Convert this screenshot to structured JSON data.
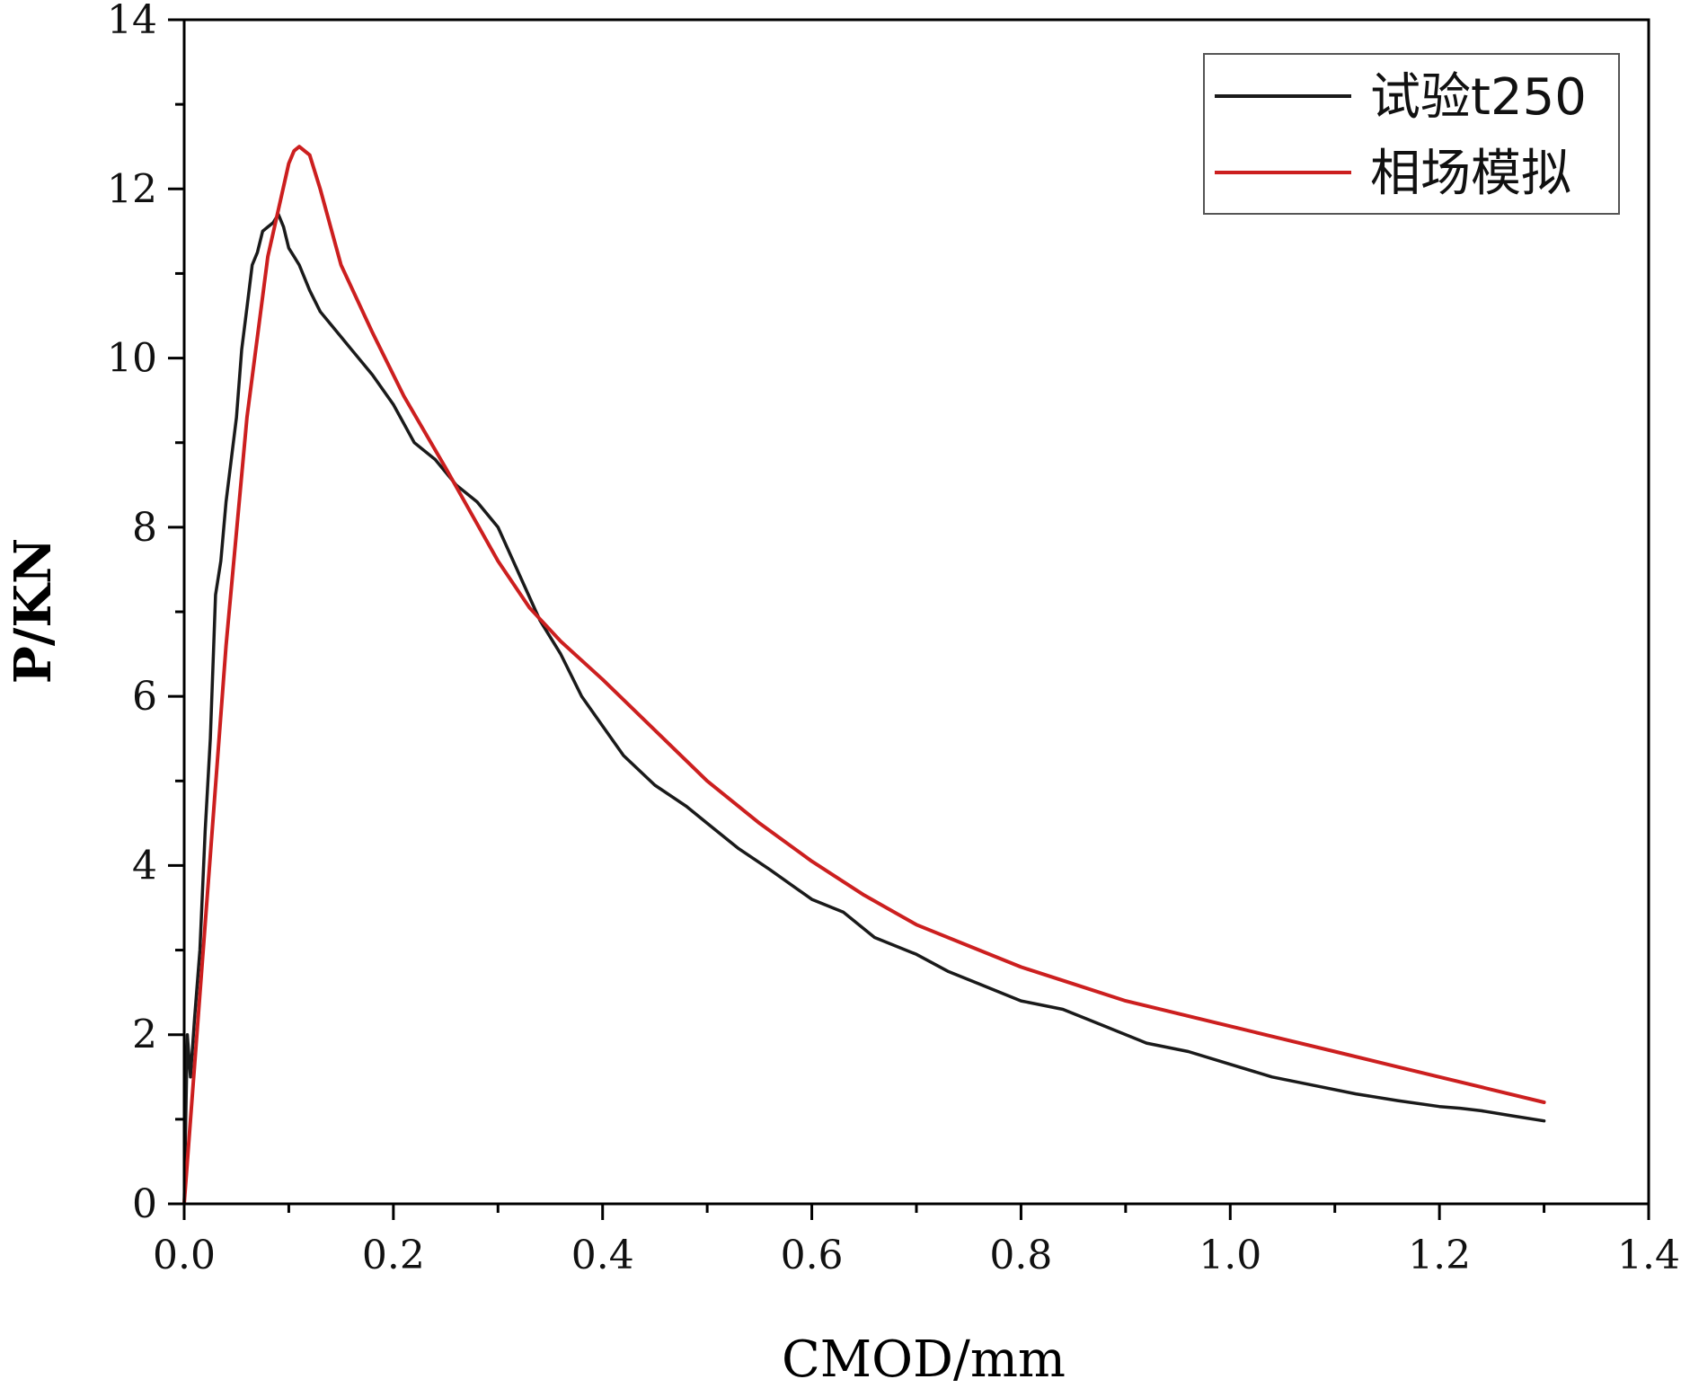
{
  "chart_data": {
    "type": "line",
    "xlabel": "CMOD/mm",
    "ylabel": "P/KN",
    "xlim": [
      0,
      1.4
    ],
    "ylim": [
      0,
      14
    ],
    "x_ticks": [
      "0.0",
      "0.2",
      "0.4",
      "0.6",
      "0.8",
      "1.0",
      "1.2",
      "1.4"
    ],
    "y_ticks": [
      "0",
      "2",
      "4",
      "6",
      "8",
      "10",
      "12",
      "14"
    ],
    "grid": false,
    "legend_position": "top-right",
    "series": [
      {
        "name": "试验t250",
        "color": "#1a1a1a",
        "x": [
          0,
          0.003,
          0.006,
          0.01,
          0.015,
          0.02,
          0.025,
          0.03,
          0.035,
          0.04,
          0.045,
          0.05,
          0.055,
          0.06,
          0.065,
          0.07,
          0.075,
          0.08,
          0.085,
          0.09,
          0.095,
          0.1,
          0.105,
          0.11,
          0.12,
          0.13,
          0.14,
          0.16,
          0.18,
          0.2,
          0.22,
          0.24,
          0.26,
          0.28,
          0.3,
          0.32,
          0.34,
          0.36,
          0.38,
          0.4,
          0.42,
          0.45,
          0.48,
          0.5,
          0.53,
          0.56,
          0.6,
          0.63,
          0.66,
          0.7,
          0.73,
          0.76,
          0.8,
          0.84,
          0.88,
          0.92,
          0.96,
          1.0,
          1.04,
          1.08,
          1.12,
          1.16,
          1.2,
          1.22,
          1.24,
          1.27,
          1.3
        ],
        "y": [
          0,
          2.0,
          1.5,
          2.2,
          3.0,
          4.4,
          5.5,
          7.2,
          7.6,
          8.3,
          8.8,
          9.3,
          10.1,
          10.6,
          11.1,
          11.25,
          11.5,
          11.55,
          11.6,
          11.7,
          11.55,
          11.3,
          11.2,
          11.1,
          10.8,
          10.55,
          10.4,
          10.1,
          9.8,
          9.45,
          9.0,
          8.8,
          8.5,
          8.3,
          8.0,
          7.45,
          6.9,
          6.5,
          6.0,
          5.65,
          5.3,
          4.95,
          4.7,
          4.5,
          4.2,
          3.95,
          3.6,
          3.45,
          3.15,
          2.95,
          2.75,
          2.6,
          2.4,
          2.3,
          2.1,
          1.9,
          1.8,
          1.65,
          1.5,
          1.4,
          1.3,
          1.22,
          1.15,
          1.13,
          1.1,
          1.04,
          0.98
        ]
      },
      {
        "name": "相场模拟",
        "color": "#cc1f1f",
        "x": [
          0,
          0.02,
          0.04,
          0.06,
          0.08,
          0.1,
          0.105,
          0.11,
          0.12,
          0.13,
          0.15,
          0.18,
          0.21,
          0.25,
          0.3,
          0.33,
          0.36,
          0.4,
          0.45,
          0.5,
          0.55,
          0.6,
          0.65,
          0.7,
          0.75,
          0.8,
          0.85,
          0.9,
          0.95,
          1.0,
          1.05,
          1.1,
          1.15,
          1.2,
          1.25,
          1.3
        ],
        "y": [
          0,
          3.3,
          6.6,
          9.3,
          11.2,
          12.3,
          12.45,
          12.5,
          12.4,
          12.0,
          11.1,
          10.3,
          9.55,
          8.7,
          7.6,
          7.05,
          6.65,
          6.2,
          5.6,
          5.0,
          4.5,
          4.05,
          3.65,
          3.3,
          3.05,
          2.8,
          2.6,
          2.4,
          2.25,
          2.1,
          1.95,
          1.8,
          1.65,
          1.5,
          1.35,
          1.2
        ]
      }
    ]
  }
}
